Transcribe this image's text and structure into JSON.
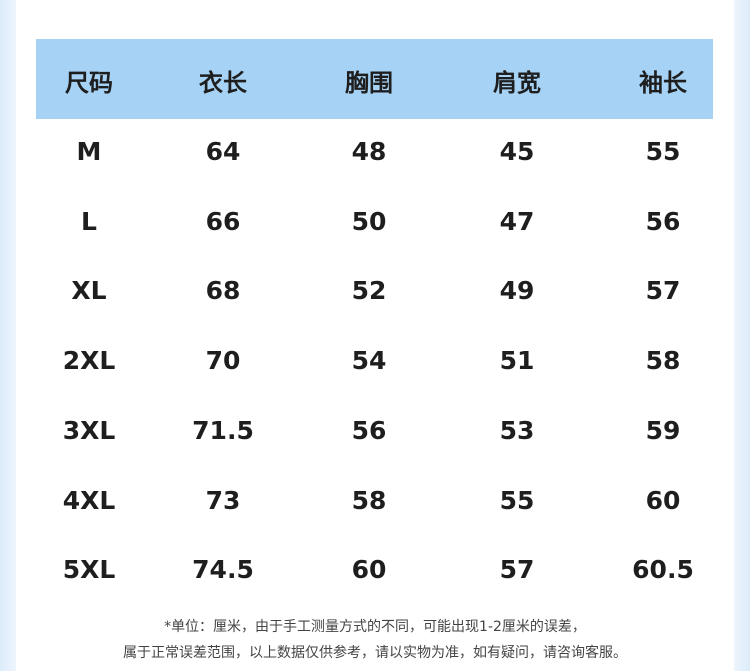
{
  "table": {
    "headers": [
      "尺码",
      "衣长",
      "胸围",
      "肩宽",
      "袖长"
    ],
    "rows": [
      [
        "M",
        "64",
        "48",
        "45",
        "55"
      ],
      [
        "L",
        "66",
        "50",
        "47",
        "56"
      ],
      [
        "XL",
        "68",
        "52",
        "49",
        "57"
      ],
      [
        "2XL",
        "70",
        "54",
        "51",
        "58"
      ],
      [
        "3XL",
        "71.5",
        "56",
        "53",
        "59"
      ],
      [
        "4XL",
        "73",
        "58",
        "55",
        "60"
      ],
      [
        "5XL",
        "74.5",
        "60",
        "57",
        "60.5"
      ]
    ],
    "header_color": "#a6d3f5"
  },
  "footer": {
    "line1": "*单位：厘米，由于手工测量方式的不同，可能出现1-2厘米的误差，",
    "line2": "属于正常误差范围，以上数据仅供参考，请以实物为准，如有疑问，请咨询客服。"
  }
}
